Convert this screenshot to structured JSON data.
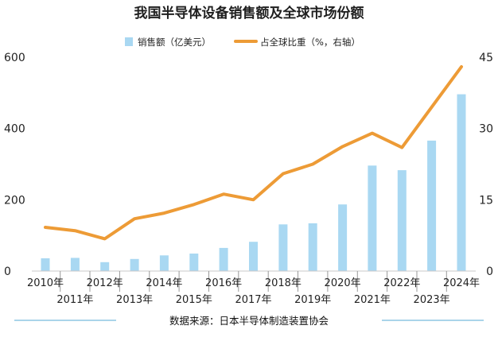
{
  "header": {
    "title": "我国半导体设备销售额及全球市场份额"
  },
  "legend": {
    "bar_label": "销售额（亿美元）",
    "line_label": "占全球比重（%，右轴）"
  },
  "source": {
    "text": "数据来源：日本半导体制造装置协会"
  },
  "colors": {
    "bar": "#a9d8f2",
    "line": "#ed9b36",
    "divider": "#8ec6e4"
  },
  "chart_data": {
    "type": "bar",
    "title": "我国半导体设备销售额及全球市场份额",
    "categories": [
      "2010年",
      "2011年",
      "2012年",
      "2013年",
      "2014年",
      "2015年",
      "2016年",
      "2017年",
      "2018年",
      "2019年",
      "2020年",
      "2021年",
      "2022年",
      "2023年",
      "2024年"
    ],
    "xlabel": "",
    "ylabel": "",
    "ylim": [
      0,
      600
    ],
    "y_ticks": [
      0,
      200,
      400,
      600
    ],
    "y2lim": [
      0,
      45
    ],
    "y2_ticks": [
      0,
      15,
      30,
      45
    ],
    "grid": false,
    "legend_position": "top-center",
    "series": [
      {
        "name": "销售额（亿美元）",
        "type": "bar",
        "axis": "left",
        "values": [
          36,
          37,
          25,
          34,
          44,
          49,
          65,
          82,
          131,
          134,
          187,
          296,
          283,
          366,
          496
        ]
      },
      {
        "name": "占全球比重（%，右轴）",
        "type": "line",
        "axis": "right",
        "values": [
          9.2,
          8.5,
          6.8,
          11.0,
          12.2,
          14.0,
          16.2,
          15.0,
          20.5,
          22.5,
          26.2,
          29.0,
          26.0,
          34.5,
          43.0
        ]
      }
    ]
  }
}
